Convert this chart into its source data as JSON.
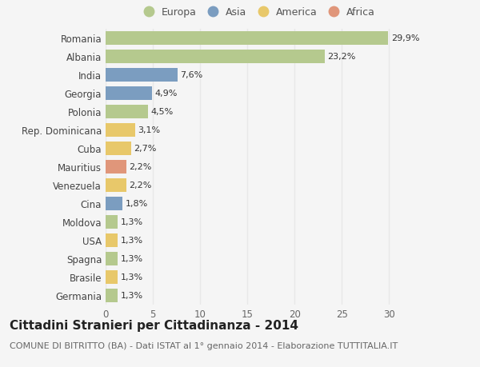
{
  "categories": [
    "Romania",
    "Albania",
    "India",
    "Georgia",
    "Polonia",
    "Rep. Dominicana",
    "Cuba",
    "Mauritius",
    "Venezuela",
    "Cina",
    "Moldova",
    "USA",
    "Spagna",
    "Brasile",
    "Germania"
  ],
  "values": [
    29.9,
    23.2,
    7.6,
    4.9,
    4.5,
    3.1,
    2.7,
    2.2,
    2.2,
    1.8,
    1.3,
    1.3,
    1.3,
    1.3,
    1.3
  ],
  "labels": [
    "29,9%",
    "23,2%",
    "7,6%",
    "4,9%",
    "4,5%",
    "3,1%",
    "2,7%",
    "2,2%",
    "2,2%",
    "1,8%",
    "1,3%",
    "1,3%",
    "1,3%",
    "1,3%",
    "1,3%"
  ],
  "continents": [
    "Europa",
    "Europa",
    "Asia",
    "Asia",
    "Europa",
    "America",
    "America",
    "Africa",
    "America",
    "Asia",
    "Europa",
    "America",
    "Europa",
    "America",
    "Europa"
  ],
  "colors": {
    "Europa": "#b5c98e",
    "Asia": "#7b9dc0",
    "America": "#e8c86a",
    "Africa": "#e0967a"
  },
  "legend_order": [
    "Europa",
    "Asia",
    "America",
    "Africa"
  ],
  "title": "Cittadini Stranieri per Cittadinanza - 2014",
  "subtitle": "COMUNE DI BITRITTO (BA) - Dati ISTAT al 1° gennaio 2014 - Elaborazione TUTTITALIA.IT",
  "xlim": [
    0,
    32
  ],
  "xticks": [
    0,
    5,
    10,
    15,
    20,
    25,
    30
  ],
  "background_color": "#f5f5f5",
  "grid_color": "#e8e8e8",
  "bar_height": 0.75,
  "title_fontsize": 11,
  "subtitle_fontsize": 8,
  "label_fontsize": 8,
  "tick_fontsize": 8.5,
  "legend_fontsize": 9
}
